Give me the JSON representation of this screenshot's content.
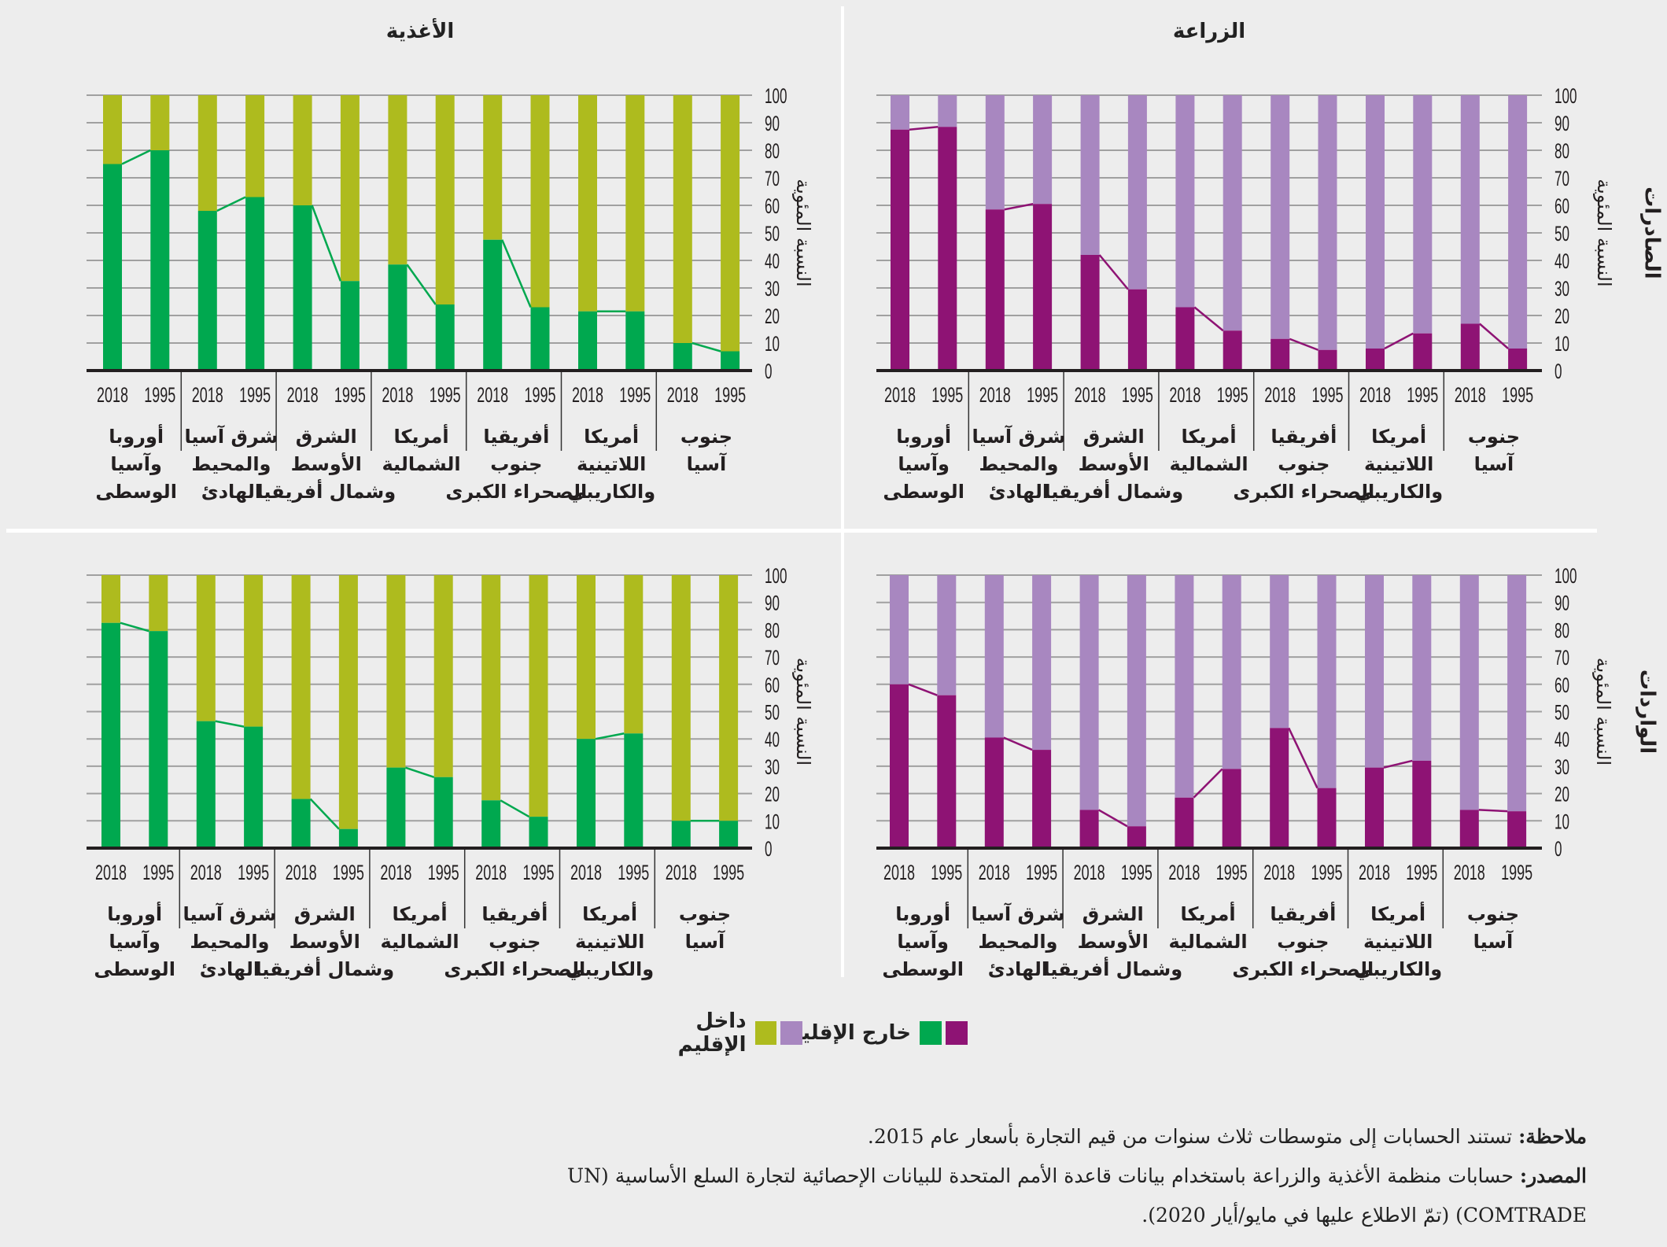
{
  "colors": {
    "agri_outside": "#8e1374",
    "agri_inside": "#a887c0",
    "food_outside": "#00a84f",
    "food_inside": "#aebb1e",
    "axis": "#231f20",
    "grid": "#a0a0a0",
    "background": "#ededed"
  },
  "legend": {
    "outside_label": "خارج الإقليم",
    "inside_label": "داخل الإقليم"
  },
  "notes": {
    "note_label": "ملاحظة:",
    "note_text": " تستند الحسابات إلى متوسطات ثلاث سنوات من قيم التجارة بأسعار عام 2015.",
    "source_label": "المصدر:",
    "source_text_1": " حسابات منظمة الأغذية والزراعة باستخدام بيانات قاعدة الأمم المتحدة للبيانات الإحصائية لتجارة السلع الأساسية (UN",
    "source_text_2": "COMTRADE) (تمّ الاطلاع عليها في مايو/أيار 2020)."
  },
  "chart_data": [
    {
      "id": "food-exports",
      "type": "bar",
      "stacked": true,
      "title": "الأغذية",
      "row_label": "",
      "ylabel": "النسبة المئوية",
      "ylim": [
        0,
        100
      ],
      "yticks": [
        "0",
        "10",
        "20",
        "30",
        "40",
        "50",
        "60",
        "70",
        "80",
        "90",
        "100"
      ],
      "grid": true,
      "palette": "food",
      "categories": [
        {
          "region": [
            "أوروبا",
            "وآسيا",
            "الوسطى"
          ],
          "years": [
            "2018",
            "1995"
          ],
          "outside": [
            75,
            80
          ]
        },
        {
          "region": [
            "شرق آسيا",
            "والمحيط",
            "الهادئ"
          ],
          "years": [
            "2018",
            "1995"
          ],
          "outside": [
            58,
            63
          ]
        },
        {
          "region": [
            "الشرق",
            "الأوسط",
            "وشمال أفريقيا"
          ],
          "years": [
            "2018",
            "1995"
          ],
          "outside": [
            60,
            32.5
          ]
        },
        {
          "region": [
            "أمريكا",
            "الشمالية"
          ],
          "years": [
            "2018",
            "1995"
          ],
          "outside": [
            38.5,
            24
          ]
        },
        {
          "region": [
            "أفريقيا",
            "جنوب",
            "الصحراء الكبرى"
          ],
          "years": [
            "2018",
            "1995"
          ],
          "outside": [
            47.5,
            23
          ]
        },
        {
          "region": [
            "أمريكا",
            "اللاتينية",
            "والكاريبي"
          ],
          "years": [
            "2018",
            "1995"
          ],
          "outside": [
            21.5,
            21.5
          ]
        },
        {
          "region": [
            "جنوب",
            "آسيا"
          ],
          "years": [
            "2018",
            "1995"
          ],
          "outside": [
            10,
            7
          ]
        }
      ]
    },
    {
      "id": "agri-exports",
      "type": "bar",
      "stacked": true,
      "title": "الزراعة",
      "row_label": "الصادرات",
      "ylabel": "النسبة المئوية",
      "ylim": [
        0,
        100
      ],
      "yticks": [
        "0",
        "10",
        "20",
        "30",
        "40",
        "50",
        "60",
        "70",
        "80",
        "90",
        "100"
      ],
      "grid": true,
      "palette": "agri",
      "categories": [
        {
          "region": [
            "أوروبا",
            "وآسيا",
            "الوسطى"
          ],
          "years": [
            "2018",
            "1995"
          ],
          "outside": [
            87.5,
            88.5
          ]
        },
        {
          "region": [
            "شرق آسيا",
            "والمحيط",
            "الهادئ"
          ],
          "years": [
            "2018",
            "1995"
          ],
          "outside": [
            58.5,
            60.5
          ]
        },
        {
          "region": [
            "الشرق",
            "الأوسط",
            "وشمال أفريقيا"
          ],
          "years": [
            "2018",
            "1995"
          ],
          "outside": [
            42,
            29.5
          ]
        },
        {
          "region": [
            "أمريكا",
            "الشمالية"
          ],
          "years": [
            "2018",
            "1995"
          ],
          "outside": [
            23,
            14.5
          ]
        },
        {
          "region": [
            "أفريقيا",
            "جنوب",
            "الصحراء الكبرى"
          ],
          "years": [
            "2018",
            "1995"
          ],
          "outside": [
            11.5,
            7.5
          ]
        },
        {
          "region": [
            "أمريكا",
            "اللاتينية",
            "والكاريبي"
          ],
          "years": [
            "2018",
            "1995"
          ],
          "outside": [
            8,
            13.5
          ]
        },
        {
          "region": [
            "جنوب",
            "آسيا"
          ],
          "years": [
            "2018",
            "1995"
          ],
          "outside": [
            17,
            8
          ]
        }
      ]
    },
    {
      "id": "food-imports",
      "type": "bar",
      "stacked": true,
      "title": "",
      "row_label": "",
      "ylabel": "النسبة المئوية",
      "ylim": [
        0,
        100
      ],
      "yticks": [
        "0",
        "10",
        "20",
        "30",
        "40",
        "50",
        "60",
        "70",
        "80",
        "90",
        "100"
      ],
      "grid": true,
      "palette": "food",
      "categories": [
        {
          "region": [
            "أوروبا",
            "وآسيا",
            "الوسطى"
          ],
          "years": [
            "2018",
            "1995"
          ],
          "outside": [
            82.5,
            79.5
          ]
        },
        {
          "region": [
            "شرق آسيا",
            "والمحيط",
            "الهادئ"
          ],
          "years": [
            "2018",
            "1995"
          ],
          "outside": [
            46.5,
            44.5
          ]
        },
        {
          "region": [
            "الشرق",
            "الأوسط",
            "وشمال أفريقيا"
          ],
          "years": [
            "2018",
            "1995"
          ],
          "outside": [
            18,
            7
          ]
        },
        {
          "region": [
            "أمريكا",
            "الشمالية"
          ],
          "years": [
            "2018",
            "1995"
          ],
          "outside": [
            29.5,
            26
          ]
        },
        {
          "region": [
            "أفريقيا",
            "جنوب",
            "الصحراء الكبرى"
          ],
          "years": [
            "2018",
            "1995"
          ],
          "outside": [
            17.5,
            11.5
          ]
        },
        {
          "region": [
            "أمريكا",
            "اللاتينية",
            "والكاريبي"
          ],
          "years": [
            "2018",
            "1995"
          ],
          "outside": [
            40,
            42
          ]
        },
        {
          "region": [
            "جنوب",
            "آسيا"
          ],
          "years": [
            "2018",
            "1995"
          ],
          "outside": [
            10,
            10
          ]
        }
      ]
    },
    {
      "id": "agri-imports",
      "type": "bar",
      "stacked": true,
      "title": "",
      "row_label": "الواردات",
      "ylabel": "النسبة المئوية",
      "ylim": [
        0,
        100
      ],
      "yticks": [
        "0",
        "10",
        "20",
        "30",
        "40",
        "50",
        "60",
        "70",
        "80",
        "90",
        "100"
      ],
      "grid": true,
      "palette": "agri",
      "categories": [
        {
          "region": [
            "أوروبا",
            "وآسيا",
            "الوسطى"
          ],
          "years": [
            "2018",
            "1995"
          ],
          "outside": [
            60,
            56
          ]
        },
        {
          "region": [
            "شرق آسيا",
            "والمحيط",
            "الهادئ"
          ],
          "years": [
            "2018",
            "1995"
          ],
          "outside": [
            40.5,
            36
          ]
        },
        {
          "region": [
            "الشرق",
            "الأوسط",
            "وشمال أفريقيا"
          ],
          "years": [
            "2018",
            "1995"
          ],
          "outside": [
            14,
            8
          ]
        },
        {
          "region": [
            "أمريكا",
            "الشمالية"
          ],
          "years": [
            "2018",
            "1995"
          ],
          "outside": [
            18.5,
            29
          ]
        },
        {
          "region": [
            "أفريقيا",
            "جنوب",
            "الصحراء الكبرى"
          ],
          "years": [
            "2018",
            "1995"
          ],
          "outside": [
            44,
            22
          ]
        },
        {
          "region": [
            "أمريكا",
            "اللاتينية",
            "والكاريبي"
          ],
          "years": [
            "2018",
            "1995"
          ],
          "outside": [
            29.5,
            32
          ]
        },
        {
          "region": [
            "جنوب",
            "آسيا"
          ],
          "years": [
            "2018",
            "1995"
          ],
          "outside": [
            14,
            13.5
          ]
        }
      ]
    }
  ]
}
